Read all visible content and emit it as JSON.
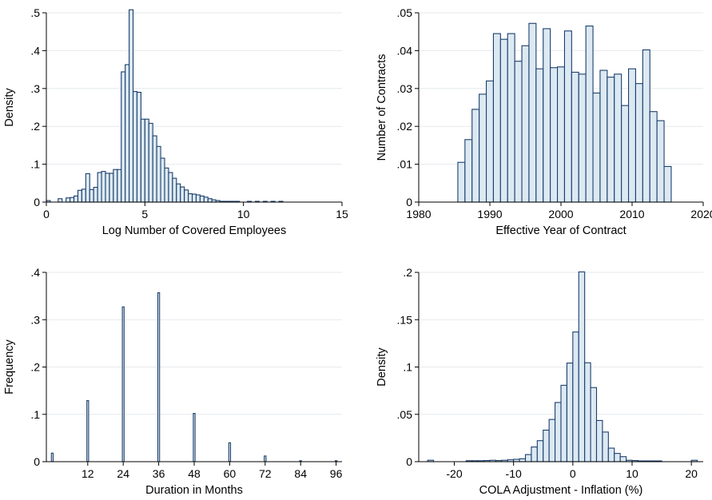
{
  "chart_data": [
    {
      "type": "bar",
      "xlabel": "Log Number of Covered Employees",
      "ylabel": "Density",
      "xlim": [
        0,
        15
      ],
      "ylim": [
        0,
        0.5
      ],
      "xticks": [
        "0",
        "5",
        "10",
        "15"
      ],
      "yticks": [
        "0",
        ".1",
        ".2",
        ".3",
        ".4",
        ".5"
      ],
      "grid": true,
      "bar_width": 0.2,
      "series": [
        {
          "x": [
            0.1,
            0.7,
            1.1,
            1.3,
            1.5,
            1.7,
            1.9,
            2.1,
            2.3,
            2.5,
            2.7,
            2.9,
            3.1,
            3.3,
            3.5,
            3.7,
            3.9,
            4.1,
            4.3,
            4.5,
            4.7,
            4.9,
            5.1,
            5.3,
            5.5,
            5.7,
            5.9,
            6.1,
            6.3,
            6.5,
            6.7,
            6.9,
            7.1,
            7.3,
            7.5,
            7.7,
            7.9,
            8.1,
            8.3,
            8.5,
            8.7,
            8.9,
            9.1,
            9.3,
            9.5,
            9.7,
            10.3,
            10.7,
            11.1,
            11.5,
            11.9
          ],
          "values": [
            0.004,
            0.009,
            0.011,
            0.012,
            0.016,
            0.031,
            0.034,
            0.075,
            0.033,
            0.039,
            0.078,
            0.081,
            0.076,
            0.076,
            0.086,
            0.086,
            0.344,
            0.363,
            0.508,
            0.292,
            0.29,
            0.219,
            0.219,
            0.208,
            0.175,
            0.147,
            0.116,
            0.09,
            0.078,
            0.063,
            0.048,
            0.04,
            0.032,
            0.022,
            0.021,
            0.019,
            0.016,
            0.013,
            0.009,
            0.006,
            0.004,
            0.002,
            0.002,
            0.002,
            0.002,
            0.002,
            0.002,
            0.002,
            0.002,
            0.002,
            0.002
          ]
        }
      ]
    },
    {
      "type": "bar",
      "xlabel": "Effective Year of Contract",
      "ylabel": "Number of Contracts",
      "xlim": [
        1980,
        2020
      ],
      "ylim": [
        0,
        0.05
      ],
      "xticks": [
        "1980",
        "1990",
        "2000",
        "2010",
        "2020"
      ],
      "yticks": [
        "0",
        ".01",
        ".02",
        ".03",
        ".04",
        ".05"
      ],
      "grid": true,
      "bar_width": 1,
      "series": [
        {
          "x": [
            1986,
            1987,
            1988,
            1989,
            1990,
            1991,
            1992,
            1993,
            1994,
            1995,
            1996,
            1997,
            1998,
            1999,
            2000,
            2001,
            2002,
            2003,
            2004,
            2005,
            2006,
            2007,
            2008,
            2009,
            2010,
            2011,
            2012,
            2013,
            2014,
            2015
          ],
          "values": [
            0.0105,
            0.0165,
            0.0245,
            0.0285,
            0.032,
            0.0445,
            0.043,
            0.0445,
            0.0372,
            0.0413,
            0.0472,
            0.0352,
            0.0458,
            0.0355,
            0.0357,
            0.0452,
            0.0343,
            0.0338,
            0.0465,
            0.0288,
            0.0348,
            0.033,
            0.0338,
            0.0255,
            0.0352,
            0.0313,
            0.0402,
            0.0239,
            0.0215,
            0.0094
          ]
        }
      ]
    },
    {
      "type": "bar",
      "xlabel": "Duration in Months",
      "ylabel": "Frequency",
      "xlim": [
        -2,
        98
      ],
      "ylim": [
        0,
        0.4
      ],
      "xticks": [
        "12",
        "24",
        "36",
        "48",
        "60",
        "72",
        "84",
        "96"
      ],
      "yticks": [
        "0",
        ".1",
        ".2",
        ".3",
        ".4"
      ],
      "grid": true,
      "bar_width": 0.6,
      "series": [
        {
          "x": [
            0,
            12,
            24,
            36,
            48,
            60,
            72,
            84,
            96
          ],
          "values": [
            0.018,
            0.129,
            0.327,
            0.357,
            0.102,
            0.04,
            0.012,
            0.002,
            0.002
          ]
        }
      ]
    },
    {
      "type": "bar",
      "xlabel": "COLA Adjustment - Inflation (%)",
      "ylabel": "Density",
      "xlim": [
        -26,
        22
      ],
      "ylim": [
        0,
        0.2
      ],
      "xticks": [
        "-20",
        "-10",
        "0",
        "10",
        "20"
      ],
      "yticks": [
        "0",
        ".05",
        ".1",
        ".15",
        ".2"
      ],
      "grid": true,
      "bar_width": 1,
      "series": [
        {
          "x": [
            -24,
            -17.5,
            -16.5,
            -15.5,
            -14.5,
            -13.5,
            -12.5,
            -11.5,
            -10.5,
            -9.5,
            -8.5,
            -7.5,
            -6.5,
            -5.5,
            -4.5,
            -3.5,
            -2.5,
            -1.5,
            -0.5,
            0.5,
            1.5,
            2.5,
            3.5,
            4.5,
            5.5,
            6.5,
            7.5,
            8.5,
            9.5,
            10.5,
            11.5,
            12.5,
            13.5,
            14.5,
            20.5
          ],
          "values": [
            0.0015,
            0.001,
            0.001,
            0.001,
            0.0012,
            0.0015,
            0.0012,
            0.0015,
            0.002,
            0.0025,
            0.003,
            0.0075,
            0.0155,
            0.0222,
            0.0333,
            0.0446,
            0.0625,
            0.0807,
            0.1042,
            0.137,
            0.2005,
            0.1045,
            0.0783,
            0.0435,
            0.0313,
            0.0143,
            0.0087,
            0.0053,
            0.0015,
            0.0012,
            0.0008,
            0.0008,
            0.0008,
            0.0008,
            0.0015
          ]
        }
      ]
    }
  ]
}
